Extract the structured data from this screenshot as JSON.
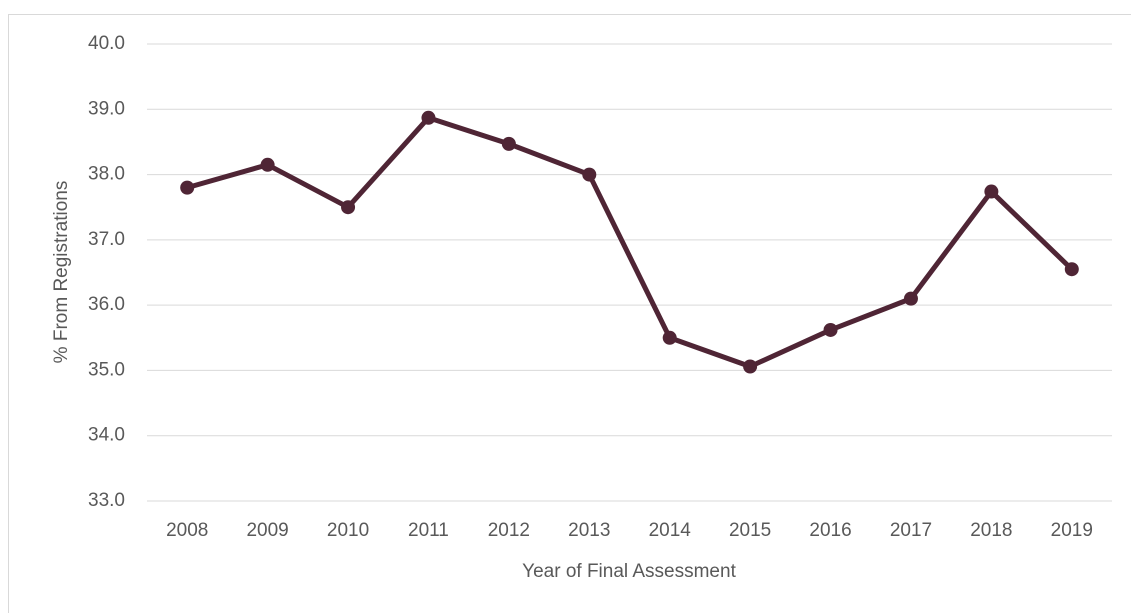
{
  "chart_data": {
    "type": "line",
    "x_label": "Year of Final Assessment",
    "y_label": "% From Registrations",
    "categories": [
      "2008",
      "2009",
      "2010",
      "2011",
      "2012",
      "2013",
      "2014",
      "2015",
      "2016",
      "2017",
      "2018",
      "2019"
    ],
    "values": [
      37.8,
      38.15,
      37.5,
      38.87,
      38.47,
      38.0,
      35.5,
      35.06,
      35.62,
      36.1,
      37.74,
      36.55
    ],
    "color": "#4f2535",
    "ylim": [
      33,
      40
    ],
    "yticks": [
      {
        "value": 33,
        "label": "33.0"
      },
      {
        "value": 34,
        "label": "34.0"
      },
      {
        "value": 35,
        "label": "35.0"
      },
      {
        "value": 36,
        "label": "36.0"
      },
      {
        "value": 37,
        "label": "37.0"
      },
      {
        "value": 38,
        "label": "38.0"
      },
      {
        "value": 39,
        "label": "39.0"
      },
      {
        "value": 40,
        "label": "40.0"
      }
    ],
    "grid": true
  }
}
